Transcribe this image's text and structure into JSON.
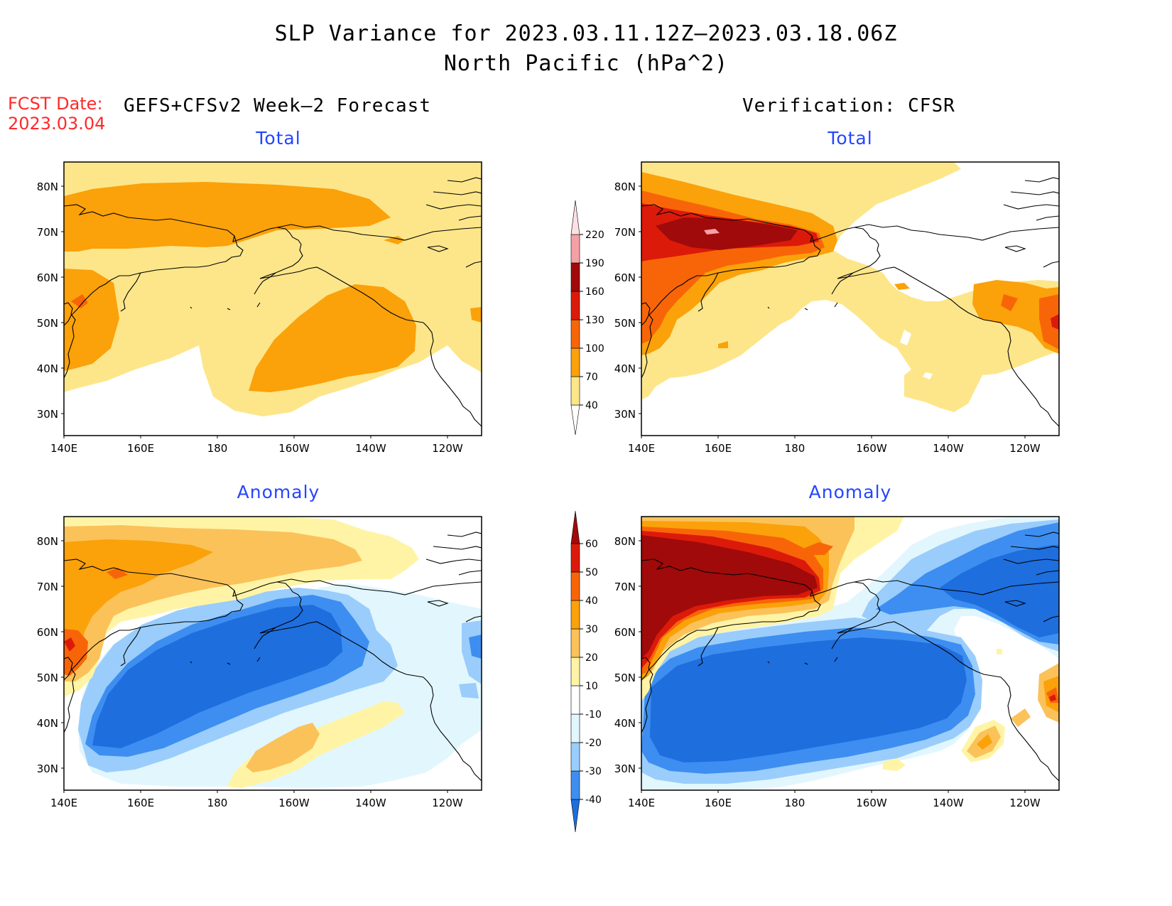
{
  "title": {
    "line1": "SLP Variance for 2023.03.11.12Z—2023.03.18.06Z",
    "line2": "North Pacific (hPa^2)"
  },
  "fcst": {
    "label": "FCST Date:",
    "date": "2023.03.04"
  },
  "headers": {
    "left": "GEFS+CFSv2 Week—2 Forecast",
    "right": "Verification: CFSR"
  },
  "panel_titles": {
    "forecast_total": "Total",
    "verification_total": "Total",
    "forecast_anomaly": "Anomaly",
    "verification_anomaly": "Anomaly"
  },
  "map_axes": {
    "lat_labels": [
      "80N",
      "70N",
      "60N",
      "50N",
      "40N",
      "30N"
    ],
    "lon_labels": [
      "140E",
      "160E",
      "180",
      "160W",
      "140W",
      "120W"
    ]
  },
  "colorbars": {
    "total": {
      "levels": [
        "40",
        "70",
        "100",
        "130",
        "160",
        "190",
        "220"
      ],
      "colors": [
        "#fde68a",
        "#fba10a",
        "#f86508",
        "#dc1a0a",
        "#a00a0a",
        "#f4a0a6",
        "#fde0e4"
      ],
      "below_color": "#ffffff"
    },
    "anomaly": {
      "levels": [
        "-40",
        "-30",
        "-20",
        "-10",
        "10",
        "20",
        "30",
        "40",
        "50",
        "60"
      ],
      "colors": [
        "#1e6ede",
        "#3d8ef0",
        "#9acdfb",
        "#e2f6fe",
        "#ffffff",
        "#fff4a6",
        "#fbc25a",
        "#fba10a",
        "#f86508",
        "#dc1a0a",
        "#a00a0a"
      ]
    }
  }
}
